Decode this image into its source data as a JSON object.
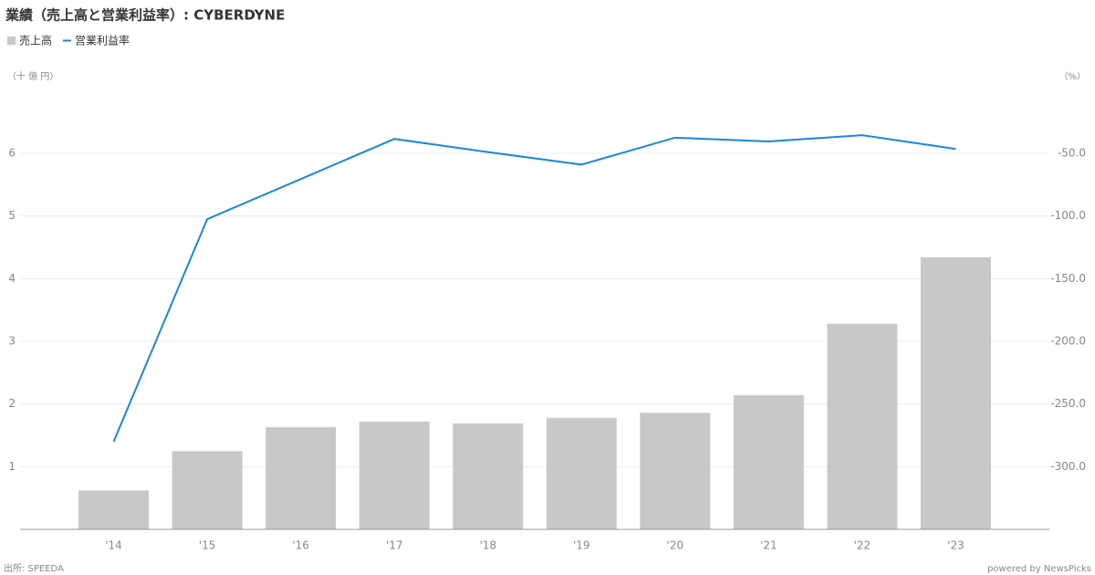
{
  "chart_data": {
    "type": "bar-line",
    "title": "業績（売上高と営業利益率）: CYBERDYNE",
    "y_unit": "（十 億 円）",
    "y2_unit": "（%）",
    "source": "出所: SPEEDA",
    "credit": "powered by NewsPicks",
    "categories": [
      "'14",
      "'15",
      "'16",
      "'17",
      "'18",
      "'19",
      "'20",
      "'21",
      "'22",
      "'23"
    ],
    "series": [
      {
        "name": "売上高",
        "type": "bar",
        "color": "#c8c8c8",
        "values": [
          0.62,
          1.25,
          1.63,
          1.72,
          1.69,
          1.78,
          1.86,
          2.14,
          3.28,
          4.34
        ]
      },
      {
        "name": "営業利益率",
        "type": "line",
        "axis": "y2",
        "color": "#1a86e0",
        "values": [
          -280,
          -102.5,
          -70.5,
          -38.5,
          -49,
          -59,
          -37.5,
          -40.5,
          -35.5,
          -46.5
        ]
      }
    ],
    "ylim": [
      0,
      7.5
    ],
    "yticks": [
      1,
      2,
      3,
      4,
      5,
      6
    ],
    "y2lim": [
      -350,
      25
    ],
    "y2ticks": [
      {
        "value": -300,
        "label": "-300.0"
      },
      {
        "value": -250,
        "label": "-250.0"
      },
      {
        "value": -200,
        "label": "-200.0"
      },
      {
        "value": -150,
        "label": "-150.0"
      },
      {
        "value": -100,
        "label": "-100.0"
      },
      {
        "value": -50,
        "label": "-50.0"
      }
    ],
    "grid": true
  }
}
